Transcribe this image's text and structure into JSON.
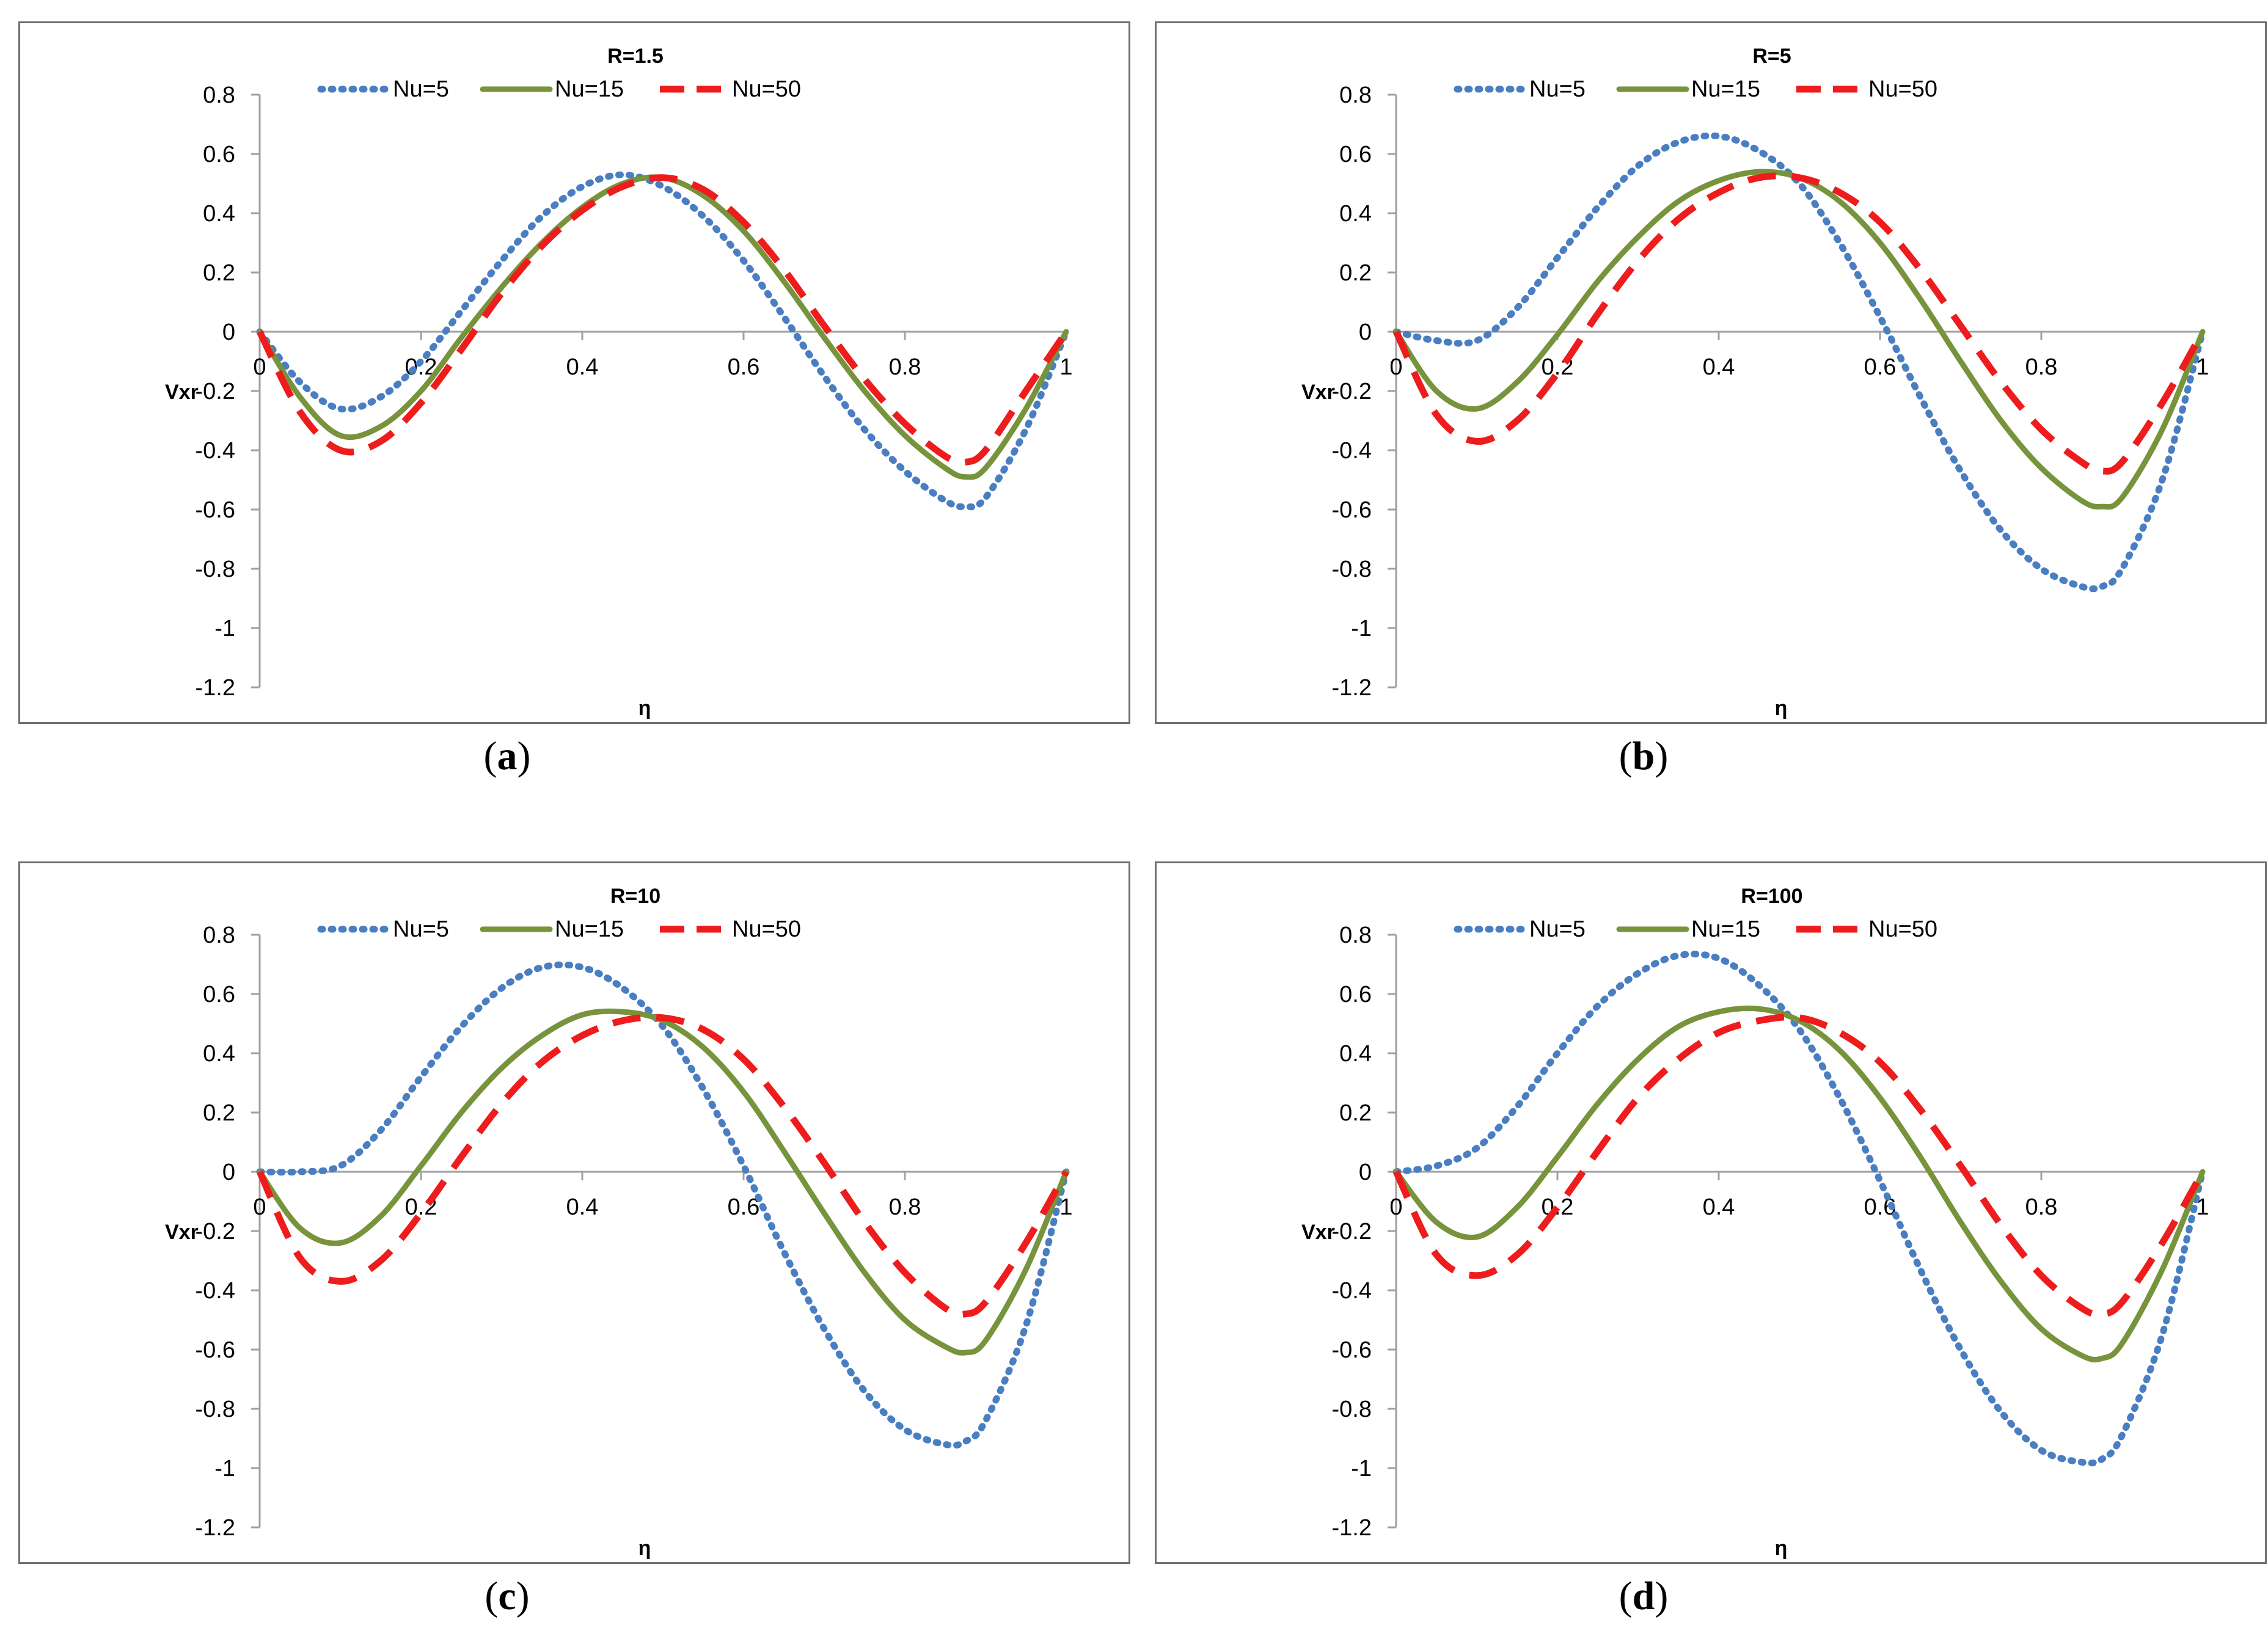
{
  "colors": {
    "nu5": "#4a7ec2",
    "nu15": "#77933c",
    "nu50": "#ee1c1c",
    "axis": "#a0a0a0",
    "frame": "#6f6f6f"
  },
  "chart_data": [
    {
      "type": "line",
      "panel": "a",
      "title": "R=1.5",
      "xlabel": "η",
      "ylabel": "Vxr",
      "caption_letter": "a",
      "xlim": [
        0,
        1
      ],
      "ylim": [
        -1.2,
        0.8
      ],
      "xticks": [
        "0",
        "0.2",
        "0.4",
        "0.6",
        "0.8",
        "1"
      ],
      "yticks": [
        "0.8",
        "0.6",
        "0.4",
        "0.2",
        "0",
        "-0.2",
        "-0.4",
        "-0.6",
        "-0.8",
        "-1",
        "-1.2"
      ],
      "x": [
        0,
        0.05,
        0.1,
        0.15,
        0.2,
        0.25,
        0.3,
        0.35,
        0.4,
        0.45,
        0.5,
        0.55,
        0.6,
        0.65,
        0.7,
        0.75,
        0.8,
        0.85,
        0.875,
        0.9,
        0.95,
        1
      ],
      "series": [
        {
          "name": "Nu=5",
          "style": "dotted",
          "values": [
            0,
            -0.17,
            -0.26,
            -0.22,
            -0.1,
            0.07,
            0.24,
            0.39,
            0.49,
            0.53,
            0.49,
            0.39,
            0.24,
            0.05,
            -0.15,
            -0.33,
            -0.47,
            -0.57,
            -0.59,
            -0.56,
            -0.33,
            0
          ]
        },
        {
          "name": "Nu=15",
          "style": "solid",
          "values": [
            0,
            -0.22,
            -0.35,
            -0.32,
            -0.2,
            -0.02,
            0.15,
            0.3,
            0.42,
            0.5,
            0.52,
            0.46,
            0.34,
            0.17,
            -0.02,
            -0.2,
            -0.35,
            -0.46,
            -0.49,
            -0.46,
            -0.26,
            0
          ]
        },
        {
          "name": "Nu=50",
          "style": "dashed",
          "values": [
            0,
            -0.27,
            -0.4,
            -0.37,
            -0.24,
            -0.06,
            0.13,
            0.29,
            0.41,
            0.49,
            0.52,
            0.48,
            0.37,
            0.21,
            0.02,
            -0.16,
            -0.31,
            -0.42,
            -0.44,
            -0.4,
            -0.2,
            0
          ]
        }
      ]
    },
    {
      "type": "line",
      "panel": "b",
      "title": "R=5",
      "xlabel": "η",
      "ylabel": "Vxr",
      "caption_letter": "b",
      "xlim": [
        0,
        1
      ],
      "ylim": [
        -1.2,
        0.8
      ],
      "xticks": [
        "0",
        "0.2",
        "0.4",
        "0.6",
        "0.8",
        "1"
      ],
      "yticks": [
        "0.8",
        "0.6",
        "0.4",
        "0.2",
        "0",
        "-0.2",
        "-0.4",
        "-0.6",
        "-0.8",
        "-1",
        "-1.2"
      ],
      "x": [
        0,
        0.05,
        0.1,
        0.15,
        0.2,
        0.25,
        0.3,
        0.35,
        0.4,
        0.45,
        0.5,
        0.55,
        0.6,
        0.65,
        0.7,
        0.75,
        0.8,
        0.85,
        0.875,
        0.9,
        0.95,
        1
      ],
      "series": [
        {
          "name": "Nu=5",
          "style": "dotted",
          "values": [
            0,
            -0.03,
            -0.03,
            0.08,
            0.25,
            0.42,
            0.56,
            0.64,
            0.66,
            0.61,
            0.5,
            0.3,
            0.05,
            -0.22,
            -0.47,
            -0.67,
            -0.8,
            -0.86,
            -0.86,
            -0.8,
            -0.5,
            0
          ]
        },
        {
          "name": "Nu=15",
          "style": "solid",
          "values": [
            0,
            -0.2,
            -0.26,
            -0.17,
            -0.01,
            0.17,
            0.32,
            0.44,
            0.51,
            0.54,
            0.52,
            0.44,
            0.3,
            0.11,
            -0.1,
            -0.3,
            -0.46,
            -0.57,
            -0.59,
            -0.56,
            -0.33,
            0
          ]
        },
        {
          "name": "Nu=50",
          "style": "dashed",
          "values": [
            0,
            -0.28,
            -0.37,
            -0.3,
            -0.14,
            0.06,
            0.24,
            0.38,
            0.47,
            0.52,
            0.52,
            0.47,
            0.37,
            0.21,
            0.02,
            -0.17,
            -0.33,
            -0.44,
            -0.47,
            -0.44,
            -0.24,
            0
          ]
        }
      ]
    },
    {
      "type": "line",
      "panel": "c",
      "title": "R=10",
      "xlabel": "η",
      "ylabel": "Vxr",
      "caption_letter": "c",
      "xlim": [
        0,
        1
      ],
      "ylim": [
        -1.2,
        0.8
      ],
      "xticks": [
        "0",
        "0.2",
        "0.4",
        "0.6",
        "0.8",
        "1"
      ],
      "yticks": [
        "0.8",
        "0.6",
        "0.4",
        "0.2",
        "0",
        "-0.2",
        "-0.4",
        "-0.6",
        "-0.8",
        "-1",
        "-1.2"
      ],
      "x": [
        0,
        0.05,
        0.1,
        0.15,
        0.2,
        0.25,
        0.3,
        0.35,
        0.4,
        0.45,
        0.5,
        0.55,
        0.6,
        0.65,
        0.7,
        0.75,
        0.8,
        0.85,
        0.875,
        0.9,
        0.95,
        1
      ],
      "series": [
        {
          "name": "Nu=5",
          "style": "dotted",
          "values": [
            0,
            0,
            0.02,
            0.14,
            0.32,
            0.49,
            0.62,
            0.69,
            0.69,
            0.62,
            0.49,
            0.28,
            0.02,
            -0.27,
            -0.53,
            -0.74,
            -0.87,
            -0.92,
            -0.91,
            -0.84,
            -0.52,
            0
          ]
        },
        {
          "name": "Nu=15",
          "style": "solid",
          "values": [
            0,
            -0.19,
            -0.24,
            -0.15,
            0.02,
            0.2,
            0.35,
            0.46,
            0.53,
            0.54,
            0.51,
            0.42,
            0.27,
            0.07,
            -0.14,
            -0.34,
            -0.5,
            -0.59,
            -0.61,
            -0.57,
            -0.33,
            0
          ]
        },
        {
          "name": "Nu=50",
          "style": "dashed",
          "values": [
            0,
            -0.29,
            -0.37,
            -0.3,
            -0.14,
            0.05,
            0.23,
            0.37,
            0.46,
            0.51,
            0.52,
            0.48,
            0.38,
            0.22,
            0.03,
            -0.17,
            -0.34,
            -0.46,
            -0.48,
            -0.44,
            -0.24,
            0
          ]
        }
      ]
    },
    {
      "type": "line",
      "panel": "d",
      "title": "R=100",
      "xlabel": "η",
      "ylabel": "Vxr",
      "caption_letter": "d",
      "xlim": [
        0,
        1
      ],
      "ylim": [
        -1.2,
        0.8
      ],
      "xticks": [
        "0",
        "0.2",
        "0.4",
        "0.6",
        "0.8",
        "1"
      ],
      "yticks": [
        "0.8",
        "0.6",
        "0.4",
        "0.2",
        "0",
        "-0.2",
        "-0.4",
        "-0.6",
        "-0.8",
        "-1",
        "-1.2"
      ],
      "x": [
        0,
        0.05,
        0.1,
        0.15,
        0.2,
        0.25,
        0.3,
        0.35,
        0.4,
        0.45,
        0.5,
        0.55,
        0.6,
        0.65,
        0.7,
        0.75,
        0.8,
        0.85,
        0.875,
        0.9,
        0.95,
        1
      ],
      "series": [
        {
          "name": "Nu=5",
          "style": "dotted",
          "values": [
            0,
            0.02,
            0.08,
            0.22,
            0.4,
            0.56,
            0.67,
            0.73,
            0.72,
            0.63,
            0.48,
            0.25,
            -0.03,
            -0.33,
            -0.6,
            -0.81,
            -0.94,
            -0.98,
            -0.97,
            -0.89,
            -0.55,
            0
          ]
        },
        {
          "name": "Nu=15",
          "style": "solid",
          "values": [
            0,
            -0.17,
            -0.22,
            -0.12,
            0.05,
            0.23,
            0.38,
            0.49,
            0.54,
            0.55,
            0.51,
            0.41,
            0.25,
            0.05,
            -0.17,
            -0.37,
            -0.53,
            -0.62,
            -0.63,
            -0.58,
            -0.33,
            0
          ]
        },
        {
          "name": "Nu=50",
          "style": "dashed",
          "values": [
            0,
            -0.28,
            -0.35,
            -0.28,
            -0.12,
            0.07,
            0.25,
            0.38,
            0.47,
            0.51,
            0.52,
            0.47,
            0.37,
            0.21,
            0.02,
            -0.18,
            -0.35,
            -0.46,
            -0.48,
            -0.44,
            -0.24,
            0
          ]
        }
      ]
    }
  ]
}
